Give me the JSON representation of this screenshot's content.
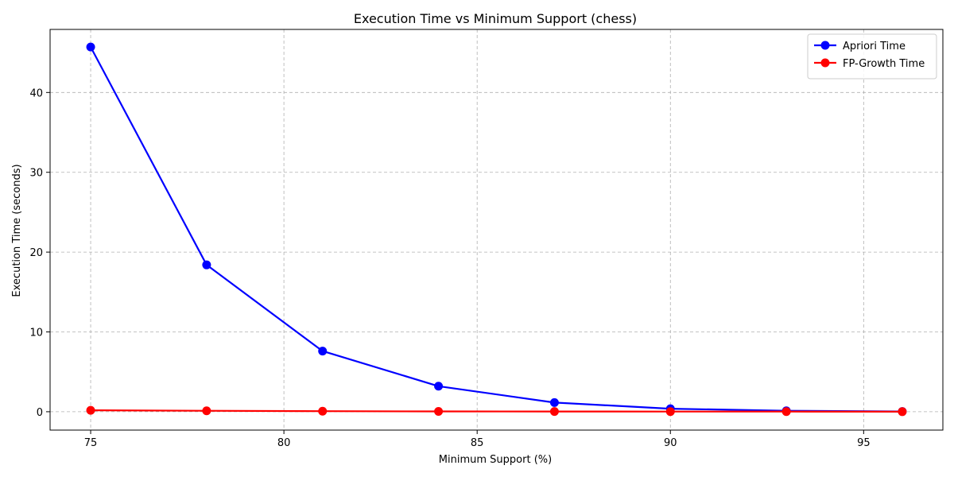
{
  "chart_data": {
    "type": "line",
    "title": "Execution Time vs Minimum Support (chess)",
    "xlabel": "Minimum Support (%)",
    "ylabel": "Execution Time (seconds)",
    "x": [
      75,
      78,
      81,
      84,
      87,
      90,
      93,
      96
    ],
    "xlim": [
      73.95,
      97.05
    ],
    "ylim": [
      -2.3,
      47.9
    ],
    "xticks": [
      75,
      80,
      85,
      90,
      95
    ],
    "yticks": [
      0,
      10,
      20,
      30,
      40
    ],
    "grid": true,
    "legend_position": "top-right",
    "series": [
      {
        "name": "Apriori Time",
        "color": "#0000ff",
        "values": [
          45.7,
          18.4,
          7.6,
          3.2,
          1.15,
          0.38,
          0.12,
          0.03
        ]
      },
      {
        "name": "FP-Growth Time",
        "color": "#ff0000",
        "values": [
          0.18,
          0.12,
          0.07,
          0.04,
          0.03,
          0.02,
          0.02,
          0.01
        ]
      }
    ]
  }
}
